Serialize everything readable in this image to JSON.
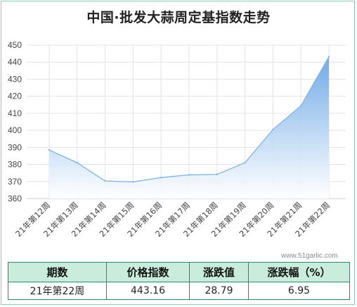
{
  "title": "中国·批发大蒜周定基指数走势",
  "watermark": "www.51garlic.com",
  "colors": {
    "line": "#7fb4e6",
    "area_top": "#6aa6e6",
    "area_bottom": "#ffffff",
    "grid": "#e3e3e3",
    "table_border": "#2a8a63",
    "table_header_bg": "#c9ecdd"
  },
  "chart_data": {
    "type": "area",
    "title": "中国·批发大蒜周定基指数走势",
    "xlabel": "",
    "ylabel": "",
    "ylim": [
      360,
      450
    ],
    "yticks": [
      360,
      370,
      380,
      390,
      400,
      410,
      420,
      430,
      440,
      450
    ],
    "grid": true,
    "categories": [
      "21年第12周",
      "21年第13周",
      "21年第14周",
      "21年第15周",
      "21年第16周",
      "21年第17周",
      "21年第18周",
      "21年第19周",
      "21年第20周",
      "21年第21周",
      "21年第22周"
    ],
    "series": [
      {
        "values": [
          388.5,
          381,
          370.3,
          369.8,
          372.3,
          373.9,
          374.2,
          381,
          400.5,
          414.4,
          443.16
        ]
      }
    ]
  },
  "table": {
    "headers": [
      "期数",
      "价格指数",
      "涨跌值",
      "涨跌幅（%）"
    ],
    "row": [
      "21年第22周",
      "443.16",
      "28.79",
      "6.95"
    ]
  }
}
